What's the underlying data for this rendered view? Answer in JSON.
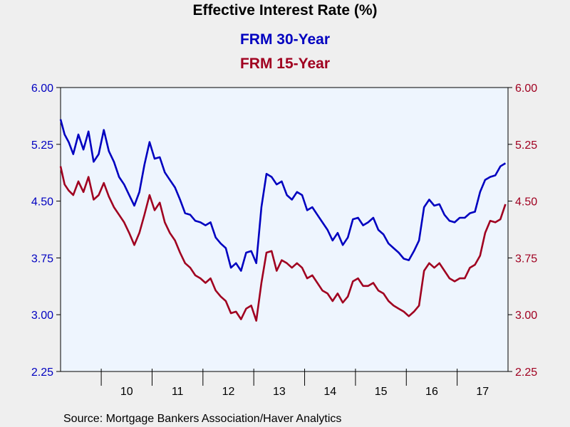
{
  "chart_data": {
    "type": "line",
    "title": "Effective Interest Rate (%)",
    "source": "Source:  Mortgage Bankers Association/Haver Analytics",
    "ylim": [
      2.25,
      6.0
    ],
    "yticks_left": [
      "6.00",
      "5.25",
      "4.50",
      "3.75",
      "3.00",
      "2.25"
    ],
    "yticks_right": [
      "6.00",
      "5.25",
      "4.50",
      "3.75",
      "3.00",
      "2.25"
    ],
    "ytick_values": [
      6.0,
      5.25,
      4.5,
      3.75,
      3.0,
      2.25
    ],
    "xlim": [
      2009.2,
      2018.0
    ],
    "x_year_boundaries": [
      2010,
      2011,
      2012,
      2013,
      2014,
      2015,
      2016,
      2017
    ],
    "x_labels": [
      {
        "text": "10",
        "year": 2010.5
      },
      {
        "text": "11",
        "year": 2011.5
      },
      {
        "text": "12",
        "year": 2012.5
      },
      {
        "text": "13",
        "year": 2013.5
      },
      {
        "text": "14",
        "year": 2014.5
      },
      {
        "text": "15",
        "year": 2015.5
      },
      {
        "text": "16",
        "year": 2016.5
      },
      {
        "text": "17",
        "year": 2017.5
      }
    ],
    "grid": false,
    "legend": "top-center",
    "series": [
      {
        "name": "FRM 30-Year",
        "color": "#0000c0",
        "x": [
          2009.2,
          2009.28,
          2009.36,
          2009.45,
          2009.55,
          2009.65,
          2009.75,
          2009.85,
          2009.95,
          2010.05,
          2010.15,
          2010.25,
          2010.35,
          2010.45,
          2010.55,
          2010.65,
          2010.75,
          2010.85,
          2010.95,
          2011.05,
          2011.15,
          2011.25,
          2011.35,
          2011.45,
          2011.55,
          2011.65,
          2011.75,
          2011.85,
          2011.95,
          2012.05,
          2012.15,
          2012.25,
          2012.35,
          2012.45,
          2012.55,
          2012.65,
          2012.75,
          2012.85,
          2012.95,
          2013.05,
          2013.15,
          2013.25,
          2013.35,
          2013.45,
          2013.55,
          2013.65,
          2013.75,
          2013.85,
          2013.95,
          2014.05,
          2014.15,
          2014.25,
          2014.35,
          2014.45,
          2014.55,
          2014.65,
          2014.75,
          2014.85,
          2014.95,
          2015.05,
          2015.15,
          2015.25,
          2015.35,
          2015.45,
          2015.55,
          2015.65,
          2015.75,
          2015.85,
          2015.95,
          2016.05,
          2016.15,
          2016.25,
          2016.35,
          2016.45,
          2016.55,
          2016.65,
          2016.75,
          2016.85,
          2016.95,
          2017.05,
          2017.15,
          2017.25,
          2017.35,
          2017.45,
          2017.55,
          2017.65,
          2017.75,
          2017.85,
          2017.95
        ],
        "values": [
          5.58,
          5.38,
          5.28,
          5.12,
          5.38,
          5.18,
          5.42,
          5.02,
          5.12,
          5.44,
          5.16,
          5.02,
          4.82,
          4.72,
          4.58,
          4.44,
          4.62,
          4.98,
          5.28,
          5.06,
          5.08,
          4.88,
          4.78,
          4.68,
          4.52,
          4.34,
          4.32,
          4.24,
          4.22,
          4.18,
          4.22,
          4.02,
          3.94,
          3.88,
          3.62,
          3.68,
          3.58,
          3.82,
          3.84,
          3.68,
          4.42,
          4.86,
          4.82,
          4.72,
          4.76,
          4.58,
          4.52,
          4.62,
          4.58,
          4.38,
          4.42,
          4.32,
          4.22,
          4.12,
          3.98,
          4.08,
          3.92,
          4.02,
          4.26,
          4.28,
          4.18,
          4.22,
          4.28,
          4.12,
          4.06,
          3.94,
          3.88,
          3.82,
          3.74,
          3.72,
          3.84,
          3.98,
          4.42,
          4.52,
          4.44,
          4.46,
          4.32,
          4.24,
          4.22,
          4.28,
          4.28,
          4.34,
          4.36,
          4.62,
          4.78,
          4.82,
          4.84,
          4.96,
          5.0
        ]
      },
      {
        "name": "FRM 15-Year",
        "color": "#a00020",
        "x": [
          2009.2,
          2009.28,
          2009.36,
          2009.45,
          2009.55,
          2009.65,
          2009.75,
          2009.85,
          2009.95,
          2010.05,
          2010.15,
          2010.25,
          2010.35,
          2010.45,
          2010.55,
          2010.65,
          2010.75,
          2010.85,
          2010.95,
          2011.05,
          2011.15,
          2011.25,
          2011.35,
          2011.45,
          2011.55,
          2011.65,
          2011.75,
          2011.85,
          2011.95,
          2012.05,
          2012.15,
          2012.25,
          2012.35,
          2012.45,
          2012.55,
          2012.65,
          2012.75,
          2012.85,
          2012.95,
          2013.05,
          2013.15,
          2013.25,
          2013.35,
          2013.45,
          2013.55,
          2013.65,
          2013.75,
          2013.85,
          2013.95,
          2014.05,
          2014.15,
          2014.25,
          2014.35,
          2014.45,
          2014.55,
          2014.65,
          2014.75,
          2014.85,
          2014.95,
          2015.05,
          2015.15,
          2015.25,
          2015.35,
          2015.45,
          2015.55,
          2015.65,
          2015.75,
          2015.85,
          2015.95,
          2016.05,
          2016.15,
          2016.25,
          2016.35,
          2016.45,
          2016.55,
          2016.65,
          2016.75,
          2016.85,
          2016.95,
          2017.05,
          2017.15,
          2017.25,
          2017.35,
          2017.45,
          2017.55,
          2017.65,
          2017.75,
          2017.85,
          2017.95
        ],
        "values": [
          4.96,
          4.72,
          4.64,
          4.58,
          4.76,
          4.62,
          4.82,
          4.52,
          4.58,
          4.74,
          4.56,
          4.42,
          4.32,
          4.22,
          4.08,
          3.92,
          4.08,
          4.32,
          4.58,
          4.38,
          4.48,
          4.22,
          4.08,
          3.98,
          3.82,
          3.68,
          3.62,
          3.52,
          3.48,
          3.42,
          3.48,
          3.32,
          3.24,
          3.18,
          3.02,
          3.04,
          2.94,
          3.08,
          3.12,
          2.92,
          3.42,
          3.82,
          3.84,
          3.58,
          3.72,
          3.68,
          3.62,
          3.68,
          3.62,
          3.48,
          3.52,
          3.42,
          3.32,
          3.28,
          3.18,
          3.28,
          3.16,
          3.24,
          3.44,
          3.48,
          3.38,
          3.38,
          3.42,
          3.32,
          3.28,
          3.18,
          3.12,
          3.08,
          3.04,
          2.98,
          3.04,
          3.12,
          3.58,
          3.68,
          3.62,
          3.68,
          3.58,
          3.48,
          3.44,
          3.48,
          3.48,
          3.62,
          3.66,
          3.78,
          4.08,
          4.24,
          4.22,
          4.26,
          4.46
        ]
      }
    ]
  }
}
